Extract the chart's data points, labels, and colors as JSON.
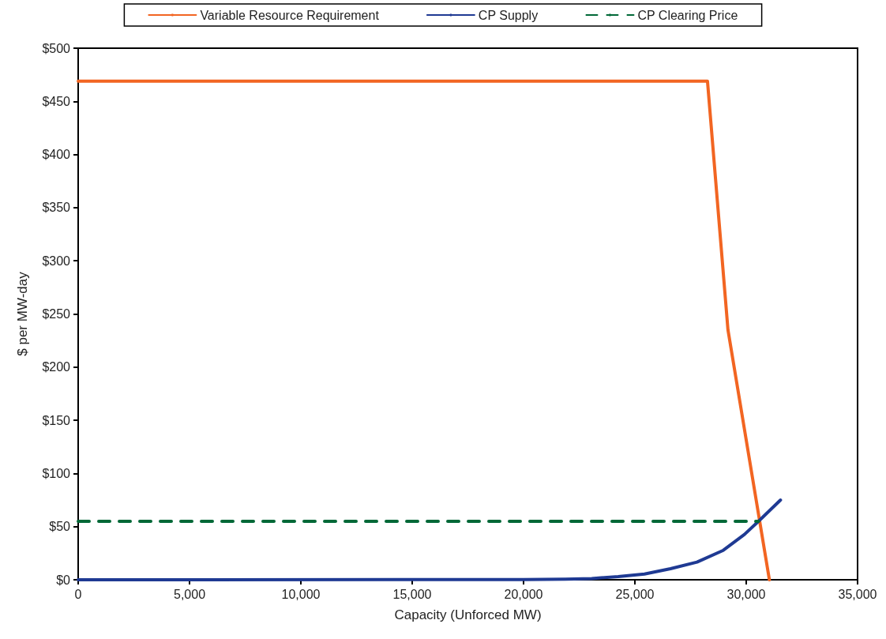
{
  "chart_data": {
    "type": "line",
    "xlabel": "Capacity (Unforced MW)",
    "ylabel": "$ per MW-day",
    "series": [
      {
        "name": "Variable Resource Requirement",
        "color": "#f26522",
        "line_style": "solid",
        "x": [
          0,
          28260,
          29180,
          31040
        ],
        "values": [
          469,
          469,
          235,
          0
        ]
      },
      {
        "name": "CP Supply",
        "color": "#1f3a93",
        "line_style": "solid",
        "x": [
          0,
          20000,
          21880,
          23060,
          24250,
          25430,
          26600,
          27790,
          28970,
          29920,
          30550,
          31540
        ],
        "values": [
          0,
          0.2,
          0.5,
          1.2,
          3,
          5.4,
          10.4,
          16.6,
          27.7,
          42.6,
          55,
          75
        ]
      },
      {
        "name": "CP Clearing Price",
        "color": "#006837",
        "line_style": "dashed",
        "x": [
          0,
          30550
        ],
        "values": [
          55,
          55
        ]
      }
    ],
    "xlim": [
      0,
      35000
    ],
    "xticks": [
      0,
      {
        "value": 5000,
        "label": "5,000"
      },
      {
        "value": 10000,
        "label": "10,000"
      },
      {
        "value": 15000,
        "label": "15,000"
      },
      {
        "value": 20000,
        "label": "20,000"
      },
      {
        "value": 25000,
        "label": "25,000"
      },
      {
        "value": 30000,
        "label": "30,000"
      },
      {
        "value": 35000,
        "label": "35,000"
      }
    ],
    "ylim": [
      0,
      500
    ],
    "yticks": [
      {
        "value": 0,
        "label": "$0"
      },
      {
        "value": 50,
        "label": "$50"
      },
      {
        "value": 100,
        "label": "$100"
      },
      {
        "value": 150,
        "label": "$150"
      },
      {
        "value": 200,
        "label": "$200"
      },
      {
        "value": 250,
        "label": "$250"
      },
      {
        "value": 300,
        "label": "$300"
      },
      {
        "value": 350,
        "label": "$350"
      },
      {
        "value": 400,
        "label": "$400"
      },
      {
        "value": 450,
        "label": "$450"
      },
      {
        "value": 500,
        "label": "$500"
      }
    ],
    "grid": false,
    "legend": "top",
    "marker": "none"
  }
}
